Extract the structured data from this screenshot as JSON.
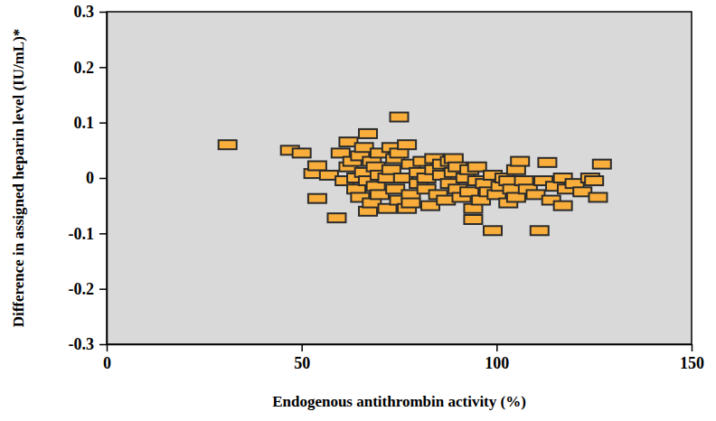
{
  "chart_data": {
    "type": "scatter",
    "xlabel": "Endogenous antithrombin activity (%)",
    "ylabel": "Difference in assigned heparin level (IU/mL)*",
    "x": [
      31,
      47,
      50,
      53,
      54,
      54,
      57,
      59,
      60,
      61,
      62,
      62,
      63,
      64,
      64,
      65,
      65,
      66,
      66,
      67,
      67,
      67,
      68,
      68,
      69,
      69,
      70,
      70,
      70,
      72,
      72,
      73,
      73,
      74,
      74,
      75,
      75,
      75,
      76,
      77,
      77,
      78,
      78,
      78,
      80,
      80,
      81,
      82,
      82,
      83,
      84,
      84,
      85,
      86,
      86,
      87,
      88,
      88,
      89,
      89,
      90,
      90,
      91,
      92,
      93,
      93,
      94,
      94,
      95,
      95,
      96,
      97,
      98,
      99,
      99,
      100,
      101,
      102,
      103,
      103,
      104,
      105,
      105,
      106,
      107,
      108,
      110,
      111,
      112,
      113,
      114,
      115,
      117,
      117,
      118,
      120,
      122,
      124,
      125,
      126,
      127
    ],
    "values": [
      0.06,
      0.05,
      0.045,
      0.008,
      0.022,
      -0.037,
      0.005,
      -0.072,
      0.045,
      -0.005,
      0.065,
      0.02,
      0.03,
      0.0,
      -0.02,
      0.04,
      -0.035,
      0.055,
      0.01,
      0.08,
      -0.06,
      -0.005,
      0.03,
      -0.045,
      0.02,
      -0.015,
      0.045,
      -0.03,
      0.005,
      0.0,
      -0.055,
      0.055,
      0.015,
      -0.02,
      0.035,
      0.11,
      -0.04,
      0.045,
      0.0,
      -0.055,
      0.06,
      0.025,
      -0.03,
      -0.045,
      0.01,
      -0.01,
      0.03,
      -0.02,
      0.0,
      -0.05,
      0.035,
      0.015,
      -0.03,
      0.005,
      0.025,
      -0.04,
      0.03,
      -0.01,
      0.035,
      0.01,
      -0.02,
      0.02,
      -0.035,
      0.0,
      -0.025,
      0.015,
      -0.055,
      -0.075,
      0.02,
      -0.005,
      -0.04,
      -0.01,
      -0.025,
      -0.095,
      0.005,
      -0.03,
      -0.015,
      0.0,
      -0.045,
      -0.005,
      -0.02,
      0.015,
      -0.035,
      0.03,
      -0.005,
      -0.02,
      -0.03,
      -0.095,
      -0.005,
      0.028,
      -0.04,
      -0.015,
      -0.05,
      0.0,
      -0.02,
      -0.01,
      -0.025,
      0.0,
      -0.005,
      -0.035,
      0.025
    ],
    "xlim": [
      0,
      150
    ],
    "xticks": [
      0,
      50,
      100,
      150
    ],
    "ylim": [
      -0.3,
      0.3
    ],
    "yticks": [
      -0.3,
      -0.2,
      -0.1,
      0,
      0.1,
      0.2,
      0.3
    ],
    "color": "#f9ae3b",
    "marker": "square"
  }
}
